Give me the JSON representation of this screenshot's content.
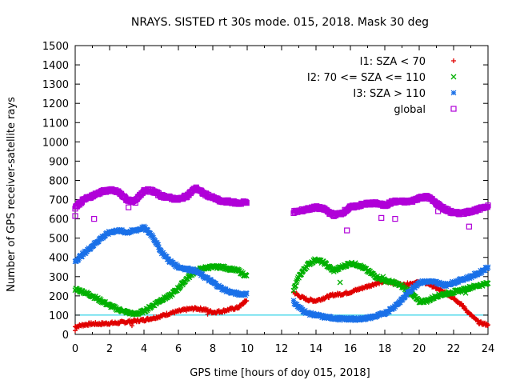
{
  "chart_data": {
    "type": "scatter",
    "title": "NRAYS. SISTED rt 30s mode. 015, 2018. Mask 30 deg",
    "xlabel": "GPS time [hours of doy 015, 2018]",
    "ylabel": "Number of GPS receiver-satellite rays",
    "xlim": [
      0,
      24
    ],
    "ylim": [
      0,
      1500
    ],
    "xticks": [
      "0",
      "2",
      "4",
      "6",
      "8",
      "10",
      "12",
      "14",
      "16",
      "18",
      "20",
      "22",
      "24"
    ],
    "yticks": [
      "0",
      "100",
      "200",
      "300",
      "400",
      "500",
      "600",
      "700",
      "800",
      "900",
      "1000",
      "1100",
      "1200",
      "1300",
      "1400",
      "1500"
    ],
    "reference_line": {
      "y": 100,
      "color": "#00c8e0"
    },
    "data_gap": [
      10.0,
      12.7
    ],
    "legend_position": "top-right",
    "series": [
      {
        "name": "I1: SZA < 70",
        "marker": "plus",
        "color": "#e00000",
        "x": [
          0,
          0.5,
          1,
          1.5,
          2,
          2.5,
          3,
          3.5,
          4,
          4.5,
          5,
          5.5,
          6,
          6.5,
          7,
          7.5,
          8,
          8.5,
          9,
          9.5,
          10,
          12.7,
          13,
          13.5,
          14,
          14.5,
          15,
          15.5,
          16,
          16.5,
          17,
          17.5,
          18,
          18.5,
          19,
          19.5,
          20,
          20.5,
          21,
          21.5,
          22,
          22.5,
          23,
          23.5,
          24
        ],
        "y": [
          40,
          50,
          55,
          55,
          58,
          60,
          65,
          70,
          75,
          85,
          95,
          110,
          120,
          130,
          135,
          130,
          115,
          120,
          130,
          140,
          180,
          220,
          200,
          180,
          175,
          190,
          205,
          210,
          220,
          235,
          250,
          265,
          275,
          270,
          255,
          265,
          270,
          265,
          240,
          215,
          190,
          150,
          100,
          60,
          50
        ]
      },
      {
        "name": "I2: 70 <= SZA <= 110",
        "marker": "cross",
        "color": "#00b000",
        "x": [
          0,
          0.5,
          1,
          1.5,
          2,
          2.5,
          3,
          3.5,
          4,
          4.5,
          5,
          5.5,
          6,
          6.5,
          7,
          7.5,
          8,
          8.5,
          9,
          9.5,
          10,
          12.7,
          13,
          13.5,
          14,
          14.5,
          15,
          15.5,
          16,
          16.5,
          17,
          17.5,
          18,
          18.5,
          19,
          19.5,
          20,
          20.5,
          21,
          21.5,
          22,
          22.5,
          23,
          23.5,
          24
        ],
        "y": [
          235,
          220,
          200,
          175,
          150,
          130,
          115,
          105,
          120,
          150,
          180,
          200,
          240,
          290,
          330,
          345,
          350,
          350,
          340,
          330,
          300,
          230,
          300,
          360,
          390,
          370,
          330,
          350,
          370,
          360,
          330,
          300,
          280,
          270,
          250,
          215,
          170,
          175,
          200,
          210,
          220,
          230,
          245,
          255,
          265
        ]
      },
      {
        "name": "I3: SZA > 110",
        "marker": "star",
        "color": "#1a70e8",
        "x": [
          0,
          0.5,
          1,
          1.5,
          2,
          2.5,
          3,
          3.5,
          4,
          4.5,
          5,
          5.5,
          6,
          6.5,
          7,
          7.5,
          8,
          8.5,
          9,
          9.5,
          10,
          12.7,
          13,
          13.5,
          14,
          14.5,
          15,
          15.5,
          16,
          16.5,
          17,
          17.5,
          18,
          18.5,
          19,
          19.5,
          20,
          20.5,
          21,
          21.5,
          22,
          22.5,
          23,
          23.5,
          24
        ],
        "y": [
          380,
          420,
          460,
          500,
          530,
          540,
          530,
          540,
          555,
          510,
          430,
          380,
          350,
          340,
          330,
          300,
          270,
          240,
          220,
          210,
          210,
          170,
          140,
          110,
          100,
          90,
          85,
          80,
          80,
          80,
          85,
          95,
          110,
          140,
          180,
          230,
          270,
          275,
          270,
          255,
          270,
          285,
          300,
          320,
          350
        ]
      },
      {
        "name": "global",
        "marker": "square",
        "color": "#b000d8",
        "x": [
          0,
          0.5,
          1,
          1.5,
          2,
          2.5,
          3,
          3.5,
          4,
          4.5,
          5,
          5.5,
          6,
          6.5,
          7,
          7.5,
          8,
          8.5,
          9,
          9.5,
          10,
          12.7,
          13,
          13.5,
          14,
          14.5,
          15,
          15.5,
          16,
          16.5,
          17,
          17.5,
          18,
          18.5,
          19,
          19.5,
          20,
          20.5,
          21,
          21.5,
          22,
          22.5,
          23,
          23.5,
          24
        ],
        "y": [
          660,
          700,
          720,
          740,
          750,
          740,
          700,
          690,
          750,
          745,
          720,
          710,
          700,
          720,
          760,
          730,
          710,
          690,
          690,
          680,
          690,
          635,
          640,
          650,
          660,
          650,
          620,
          630,
          660,
          670,
          680,
          680,
          670,
          690,
          690,
          690,
          710,
          715,
          680,
          650,
          630,
          630,
          640,
          650,
          670
        ]
      }
    ],
    "outliers": [
      {
        "series": 3,
        "points": [
          [
            0,
            615
          ],
          [
            1.1,
            600
          ],
          [
            3.1,
            660
          ],
          [
            15.8,
            540
          ],
          [
            17.8,
            605
          ],
          [
            18.6,
            600
          ],
          [
            22.9,
            560
          ],
          [
            21.1,
            640
          ]
        ]
      },
      {
        "series": 0,
        "points": [
          [
            0,
            20
          ],
          [
            3.3,
            45
          ],
          [
            7.7,
            105
          ]
        ]
      },
      {
        "series": 1,
        "points": [
          [
            15.4,
            270
          ],
          [
            17.9,
            300
          ],
          [
            22.7,
            215
          ]
        ]
      }
    ]
  }
}
